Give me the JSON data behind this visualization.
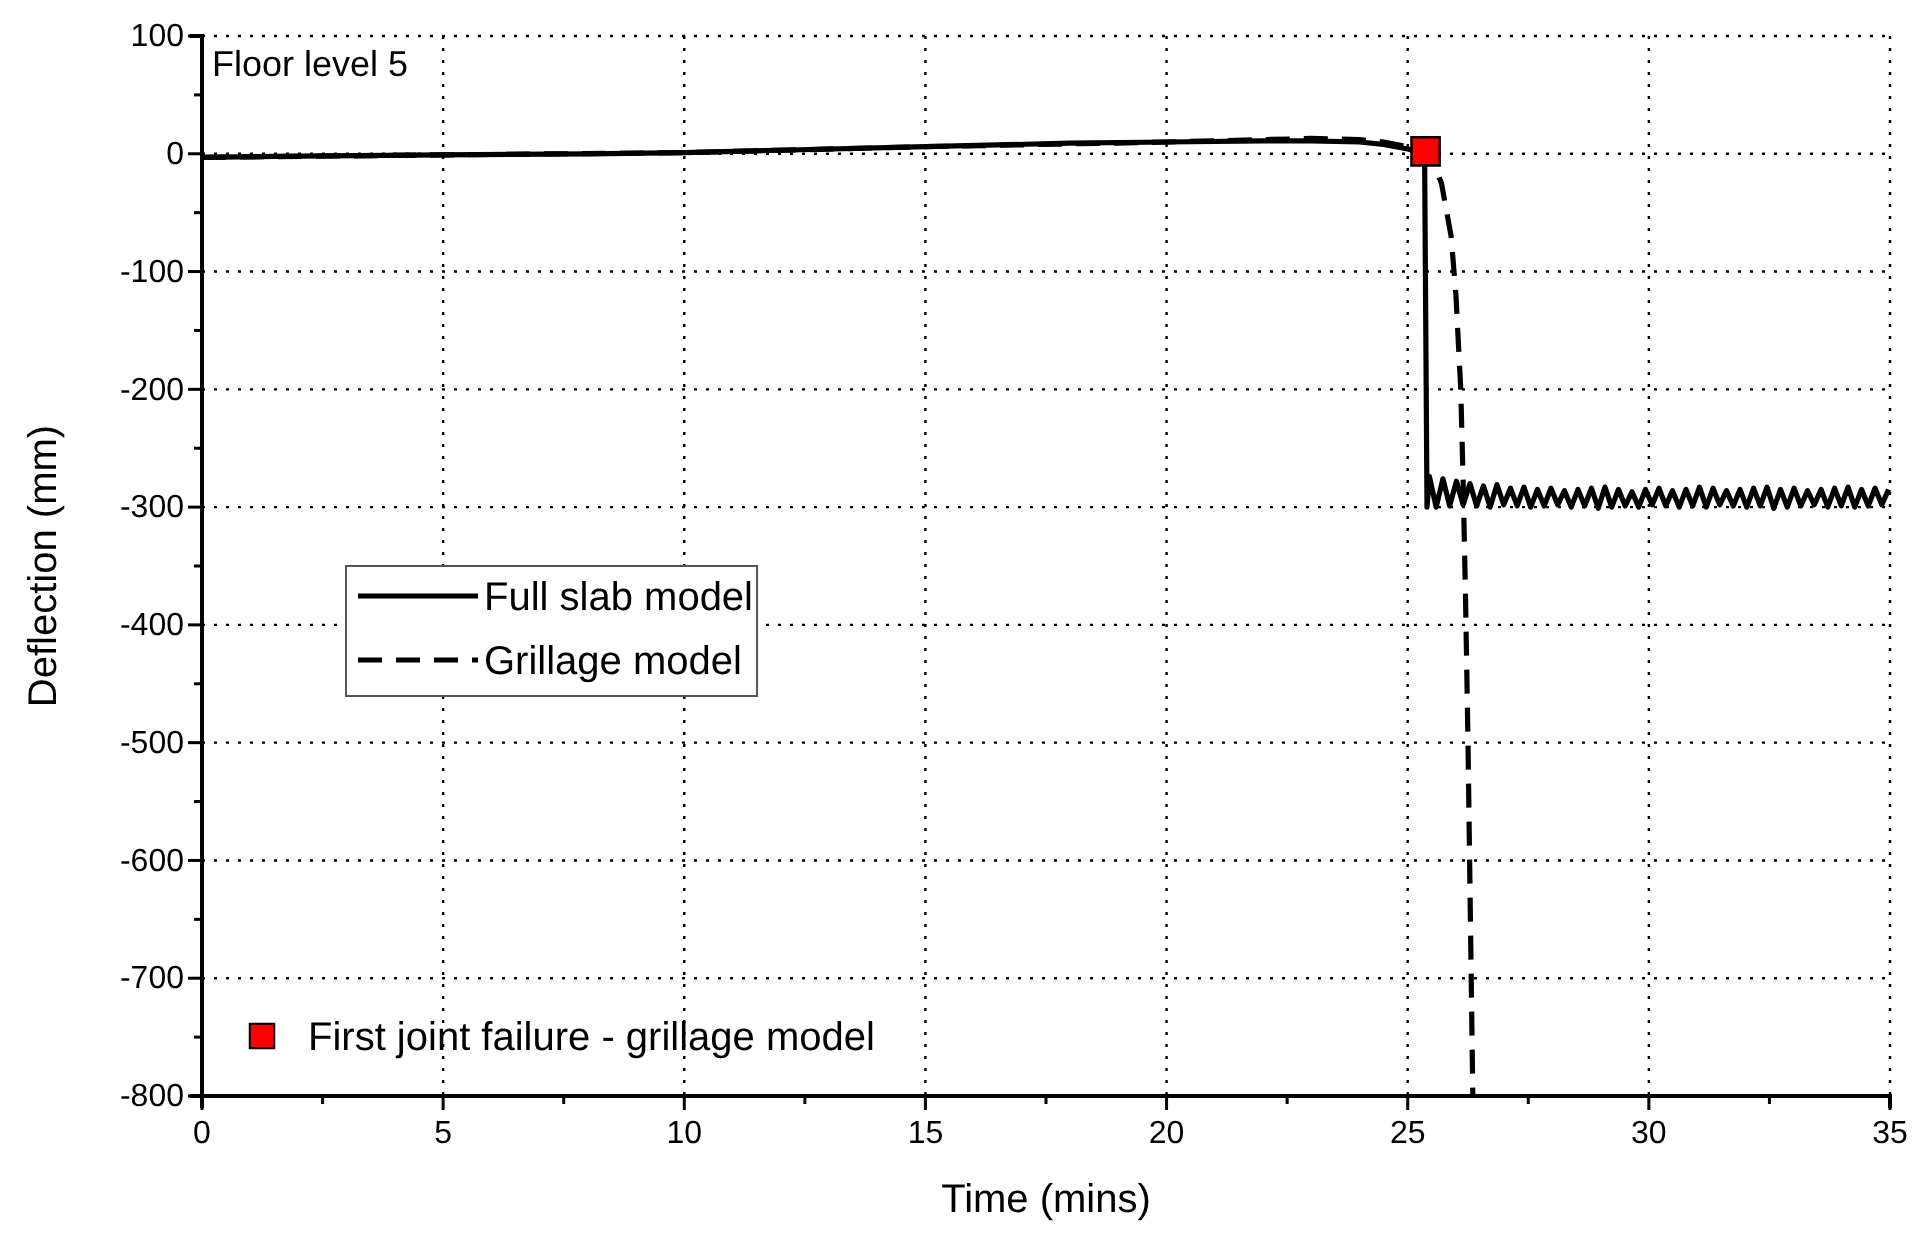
{
  "chart_data": {
    "type": "line",
    "xlabel": "Time (mins)",
    "ylabel": "Deflection (mm)",
    "annotations": [
      "Floor level 5"
    ],
    "xlim": [
      0,
      35
    ],
    "ylim": [
      -800,
      100
    ],
    "xticks": [
      0,
      {
        "value": 2.5,
        "label": null
      },
      5,
      {
        "value": 7.5,
        "label": null
      },
      10,
      {
        "value": 12.5,
        "label": null
      },
      15,
      {
        "value": 17.5,
        "label": null
      },
      20,
      {
        "value": 22.5,
        "label": null
      },
      25,
      {
        "value": 27.5,
        "label": null
      },
      30,
      {
        "value": 32.5,
        "label": null
      },
      35
    ],
    "yticks": [
      -800,
      {
        "value": -750,
        "label": null
      },
      -700,
      {
        "value": -650,
        "label": null
      },
      -600,
      {
        "value": -550,
        "label": null
      },
      -500,
      {
        "value": -450,
        "label": null
      },
      -400,
      {
        "value": -350,
        "label": null
      },
      -300,
      {
        "value": -250,
        "label": null
      },
      -200,
      {
        "value": -150,
        "label": null
      },
      -100,
      {
        "value": -50,
        "label": null
      },
      0,
      {
        "value": 50,
        "label": null
      },
      100
    ],
    "grid": true,
    "legend": "left",
    "series": [
      {
        "name": "Full slab model",
        "type": "line",
        "line_style": "solid",
        "color": "#000000",
        "x": [
          0,
          2,
          5,
          8,
          10,
          12,
          15,
          18,
          20,
          22,
          23,
          24,
          24.5,
          25,
          25.2,
          25.35,
          25.4,
          25.45,
          25.59,
          25.73,
          25.87,
          26.01,
          26.15,
          26.29,
          26.43,
          26.57,
          26.71,
          26.85,
          26.99,
          27.13,
          27.27,
          27.41,
          27.55,
          27.69,
          27.83,
          27.97,
          28.11,
          28.25,
          28.39,
          28.53,
          28.67,
          28.81,
          28.95,
          29.09,
          29.23,
          29.37,
          29.51,
          29.65,
          29.79,
          29.93,
          30.07,
          30.21,
          30.35,
          30.49,
          30.63,
          30.77,
          30.91,
          31.05,
          31.19,
          31.33,
          31.47,
          31.61,
          31.75,
          31.89,
          32.03,
          32.17,
          32.31,
          32.45,
          32.59,
          32.73,
          32.87,
          33.01,
          33.15,
          33.29,
          33.43,
          33.57,
          33.71,
          33.85,
          33.99,
          34.13,
          34.27,
          34.41,
          34.55,
          34.69,
          34.83,
          34.97
        ],
        "values": [
          -3,
          -2,
          -1,
          0,
          1,
          3,
          6,
          9,
          10,
          11,
          11,
          10,
          8,
          4,
          2,
          0,
          -300,
          -274,
          -300,
          -276,
          -299,
          -278,
          -298,
          -280,
          -299,
          -282,
          -300,
          -281,
          -298,
          -284,
          -299,
          -283,
          -300,
          -285,
          -299,
          -284,
          -298,
          -286,
          -300,
          -285,
          -299,
          -284,
          -301,
          -283,
          -300,
          -285,
          -299,
          -287,
          -300,
          -285,
          -298,
          -284,
          -299,
          -286,
          -300,
          -285,
          -299,
          -283,
          -300,
          -284,
          -298,
          -286,
          -299,
          -285,
          -300,
          -284,
          -299,
          -283,
          -301,
          -285,
          -300,
          -284,
          -299,
          -286,
          -298,
          -285,
          -300,
          -284,
          -299,
          -283,
          -300,
          -285,
          -299,
          -284,
          -298,
          -285
        ]
      },
      {
        "name": "Grillage model",
        "type": "line",
        "line_style": "dashed",
        "color": "#000000",
        "x": [
          0,
          5,
          10,
          15,
          20,
          22,
          23,
          24,
          24.5,
          25,
          25.3,
          25.5,
          25.7,
          25.9,
          26.0,
          26.1,
          26.15,
          26.2,
          26.25,
          26.3,
          26.35
        ],
        "values": [
          -3,
          -1,
          1,
          6,
          10,
          12,
          13,
          12,
          10,
          6,
          3,
          -5,
          -25,
          -70,
          -120,
          -200,
          -280,
          -380,
          -500,
          -650,
          -800
        ]
      },
      {
        "name": "First joint failure - grillage model",
        "type": "scatter",
        "marker": "square",
        "color": "#ff0000",
        "x": [
          25.37
        ],
        "values": [
          2
        ]
      }
    ]
  }
}
